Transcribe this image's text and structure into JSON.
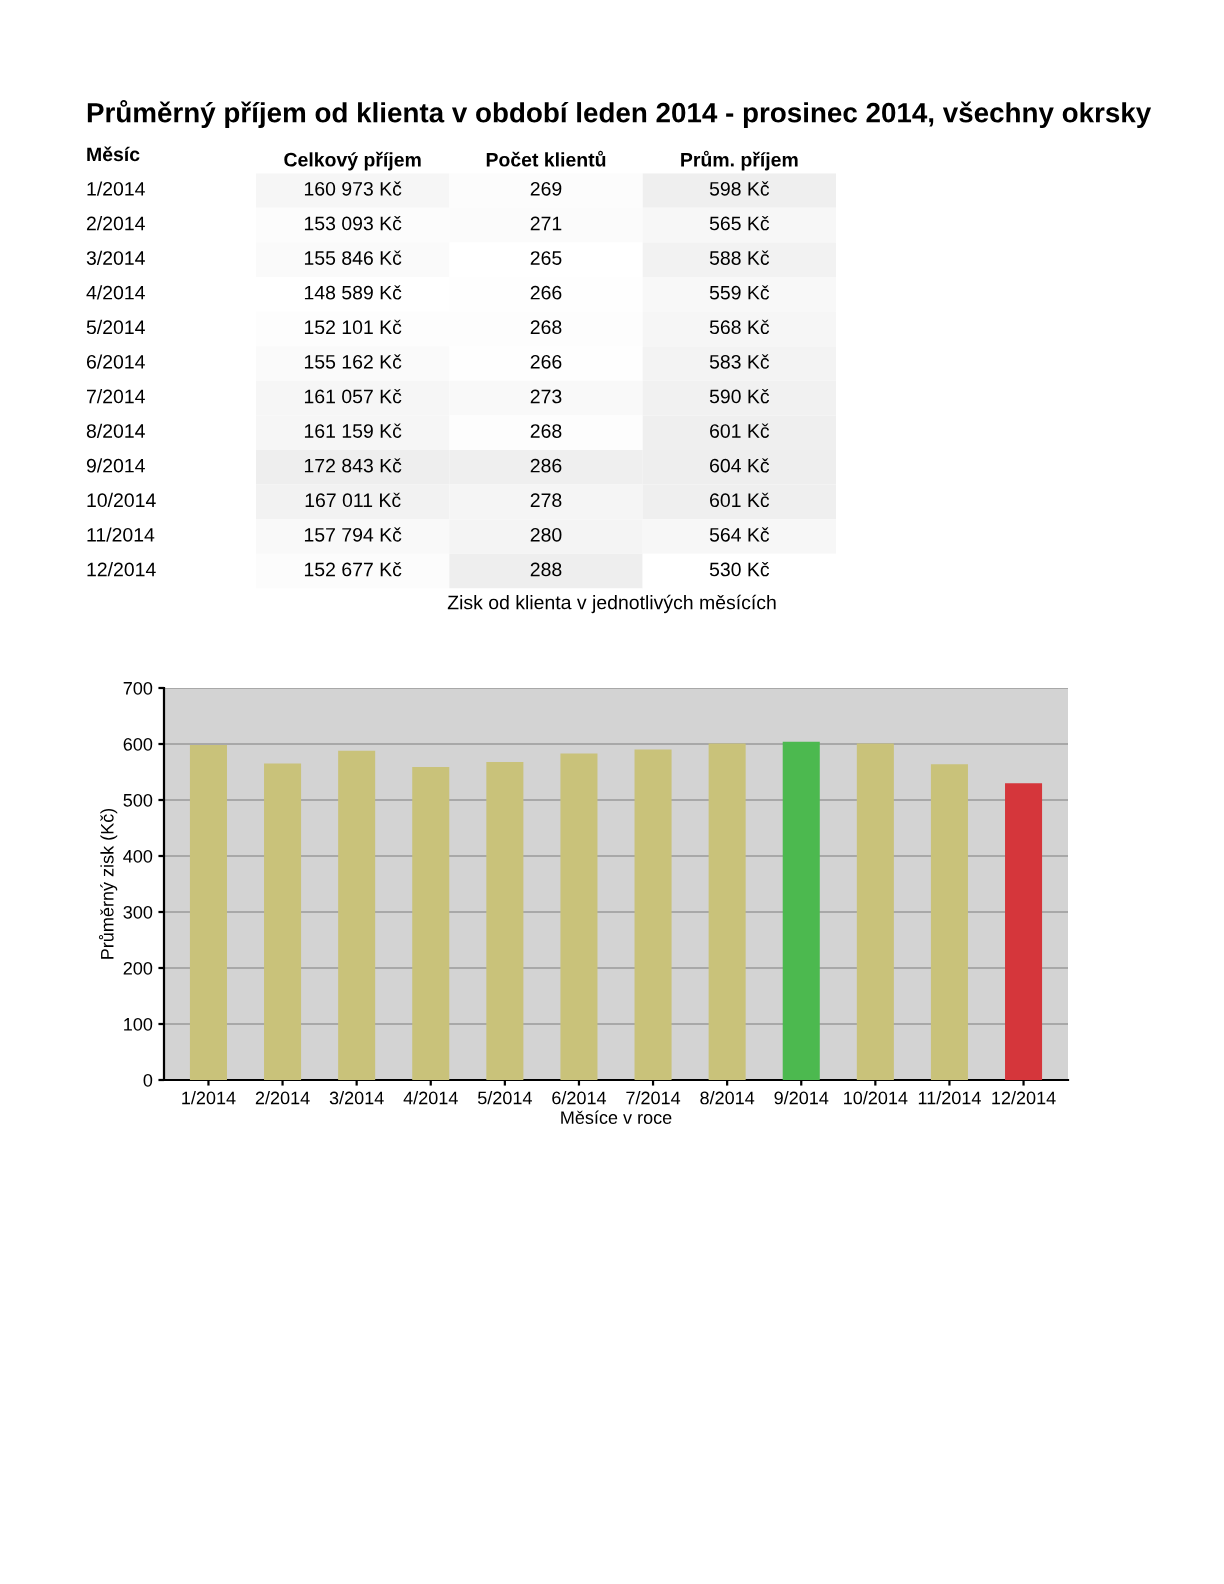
{
  "chart_data": [
    {
      "type": "heatmap",
      "title": "Průměrný příjem od klienta v období leden 2014 - prosinec 2014, všechny okrsky",
      "ylabel": "Měsíc",
      "categories": [
        "Celkový příjem",
        "Počet klientů",
        "Prům. příjem"
      ],
      "y_categories": [
        "1/2014",
        "2/2014",
        "3/2014",
        "4/2014",
        "5/2014",
        "6/2014",
        "7/2014",
        "8/2014",
        "9/2014",
        "10/2014",
        "11/2014",
        "12/2014"
      ],
      "cells": [
        [
          160973,
          269,
          598
        ],
        [
          153093,
          271,
          565
        ],
        [
          155846,
          265,
          588
        ],
        [
          148589,
          266,
          559
        ],
        [
          152101,
          268,
          568
        ],
        [
          155162,
          266,
          583
        ],
        [
          161057,
          273,
          590
        ],
        [
          161159,
          268,
          601
        ],
        [
          172843,
          286,
          604
        ],
        [
          167011,
          278,
          601
        ],
        [
          157794,
          280,
          564
        ],
        [
          152677,
          288,
          530
        ]
      ],
      "cell_labels": [
        [
          "160 973 Kč",
          "269",
          "598 Kč"
        ],
        [
          "153 093 Kč",
          "271",
          "565 Kč"
        ],
        [
          "155 846 Kč",
          "265",
          "588 Kč"
        ],
        [
          "148 589 Kč",
          "266",
          "559 Kč"
        ],
        [
          "152 101 Kč",
          "268",
          "568 Kč"
        ],
        [
          "155 162 Kč",
          "266",
          "583 Kč"
        ],
        [
          "161 057 Kč",
          "273",
          "590 Kč"
        ],
        [
          "161 159 Kč",
          "268",
          "601 Kč"
        ],
        [
          "172 843 Kč",
          "286",
          "604 Kč"
        ],
        [
          "167 011 Kč",
          "278",
          "601 Kč"
        ],
        [
          "157 794 Kč",
          "280",
          "564 Kč"
        ],
        [
          "152 677 Kč",
          "288",
          "530 Kč"
        ]
      ]
    },
    {
      "type": "bar",
      "title": "Zisk od klienta v jednotlivých měsících",
      "xlabel": "Měsíce v roce",
      "ylabel": "Průměrný zisk (Kč)",
      "categories": [
        "1/2014",
        "2/2014",
        "3/2014",
        "4/2014",
        "5/2014",
        "6/2014",
        "7/2014",
        "8/2014",
        "9/2014",
        "10/2014",
        "11/2014",
        "12/2014"
      ],
      "values": [
        598,
        565,
        588,
        559,
        568,
        583,
        590,
        601,
        604,
        601,
        564,
        530
      ],
      "colors": [
        "#c9c27a",
        "#c9c27a",
        "#c9c27a",
        "#c9c27a",
        "#c9c27a",
        "#c9c27a",
        "#c9c27a",
        "#c9c27a",
        "#4cb94f",
        "#c9c27a",
        "#c9c27a",
        "#d5363b"
      ],
      "ylim": [
        0,
        700
      ],
      "yticks": [
        0,
        100,
        200,
        300,
        400,
        500,
        600,
        700
      ],
      "grid": "y"
    }
  ]
}
